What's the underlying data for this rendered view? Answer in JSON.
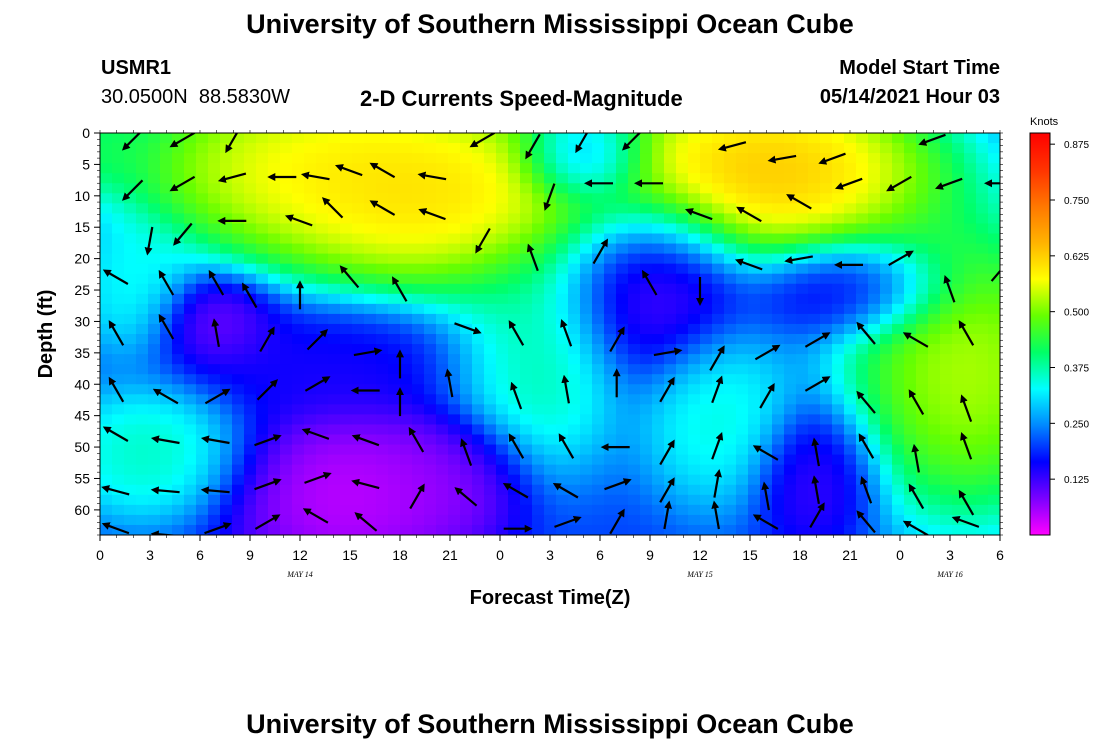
{
  "header": {
    "title": "University of Southern Mississippi Ocean Cube",
    "station_id": "USMR1",
    "station_coords": "30.0500N  88.5830W",
    "plot_title": "2-D Currents Speed-Magnitude",
    "model_start_label": "Model Start Time",
    "model_start_time": "05/14/2021 Hour 03"
  },
  "footer": {
    "title": "University of Southern Mississippi Ocean Cube"
  },
  "chart_data": {
    "type": "heatmap",
    "title": "2-D Currents Speed-Magnitude",
    "xlabel": "Forecast Time(Z)",
    "ylabel": "Depth (ft)",
    "x_tick_labels": [
      "0",
      "3",
      "6",
      "9",
      "12",
      "15",
      "18",
      "21",
      "0",
      "3",
      "6",
      "9",
      "12",
      "15",
      "18",
      "21",
      "0",
      "3",
      "6"
    ],
    "x_hours_from_may14_00z": [
      0,
      3,
      6,
      9,
      12,
      15,
      18,
      21,
      24,
      27,
      30,
      33,
      36,
      39,
      42,
      45,
      48,
      51,
      54
    ],
    "date_labels": [
      {
        "label": "MAY 14",
        "hour": 12
      },
      {
        "label": "MAY 15",
        "hour": 36
      },
      {
        "label": "MAY 16",
        "hour": 51
      }
    ],
    "xlim": [
      0,
      54
    ],
    "y_ticks": [
      0,
      5,
      10,
      15,
      20,
      25,
      30,
      35,
      40,
      45,
      50,
      55,
      60
    ],
    "ylim": [
      0,
      64
    ],
    "y_inverted": true,
    "colorbar": {
      "unit": "Knots",
      "tick_labels": [
        "0.875",
        "0.750",
        "0.625",
        "0.500",
        "0.375",
        "0.250",
        "0.125"
      ],
      "tick_values": [
        0.875,
        0.75,
        0.625,
        0.5,
        0.375,
        0.25,
        0.125
      ],
      "range": [
        0.0,
        0.9
      ],
      "colors": [
        "#ff00ff",
        "#7b00ff",
        "#0000ff",
        "#0088ff",
        "#00ffff",
        "#00ff66",
        "#66ff00",
        "#ffff00",
        "#ffb300",
        "#ff7700",
        "#ff3300",
        "#ff0000"
      ]
    },
    "speed_centers": [
      {
        "hour": 20,
        "depth": 10,
        "speed": 0.7,
        "sx": 6,
        "sy": 9
      },
      {
        "hour": 12,
        "depth": 5,
        "speed": 0.65,
        "sx": 6,
        "sy": 8
      },
      {
        "hour": 40,
        "depth": 6,
        "speed": 0.75,
        "sx": 6,
        "sy": 8
      },
      {
        "hour": 52,
        "depth": 38,
        "speed": 0.62,
        "sx": 4,
        "sy": 13
      },
      {
        "hour": 26,
        "depth": 36,
        "speed": 0.42,
        "sx": 3,
        "sy": 10
      },
      {
        "hour": 37,
        "depth": 45,
        "speed": 0.38,
        "sx": 2.5,
        "sy": 8
      },
      {
        "hour": 3,
        "depth": 51,
        "speed": 0.4,
        "sx": 3,
        "sy": 6
      },
      {
        "hour": 2,
        "depth": 25,
        "speed": 0.36,
        "sx": 2,
        "sy": 6
      },
      {
        "hour": 0,
        "depth": 2,
        "speed": 0.45,
        "sx": 2,
        "sy": 4
      },
      {
        "hour": 15,
        "depth": 58,
        "speed": 0.0,
        "sx": 4,
        "sy": 8
      },
      {
        "hour": 14,
        "depth": 36,
        "speed": 0.14,
        "sx": 5,
        "sy": 5
      },
      {
        "hour": 7,
        "depth": 30,
        "speed": 0.06,
        "sx": 2,
        "sy": 4
      },
      {
        "hour": 21,
        "depth": 55,
        "speed": 0.05,
        "sx": 2.5,
        "sy": 6
      },
      {
        "hour": 33,
        "depth": 25,
        "speed": 0.08,
        "sx": 3,
        "sy": 8
      },
      {
        "hour": 29,
        "depth": 4,
        "speed": 0.18,
        "sx": 2,
        "sy": 4
      },
      {
        "hour": 45,
        "depth": 25,
        "speed": 0.12,
        "sx": 3,
        "sy": 4
      },
      {
        "hour": 43,
        "depth": 55,
        "speed": 0.1,
        "sx": 2,
        "sy": 6
      }
    ],
    "vectors": [
      {
        "hour": 2,
        "depth": 1,
        "angle": 225
      },
      {
        "hour": 5,
        "depth": 1,
        "angle": 210
      },
      {
        "hour": 8,
        "depth": 1,
        "angle": 240
      },
      {
        "hour": 2,
        "depth": 9,
        "angle": 225
      },
      {
        "hour": 5,
        "depth": 8,
        "angle": 210
      },
      {
        "hour": 8,
        "depth": 7,
        "angle": 195
      },
      {
        "hour": 11,
        "depth": 7,
        "angle": 180
      },
      {
        "hour": 13,
        "depth": 7,
        "angle": 170
      },
      {
        "hour": 15,
        "depth": 6,
        "angle": 160
      },
      {
        "hour": 17,
        "depth": 6,
        "angle": 150
      },
      {
        "hour": 20,
        "depth": 7,
        "angle": 170
      },
      {
        "hour": 23,
        "depth": 1,
        "angle": 210
      },
      {
        "hour": 26,
        "depth": 2,
        "angle": 240
      },
      {
        "hour": 29,
        "depth": 1,
        "angle": 240
      },
      {
        "hour": 32,
        "depth": 1,
        "angle": 225
      },
      {
        "hour": 38,
        "depth": 2,
        "angle": 195
      },
      {
        "hour": 41,
        "depth": 4,
        "angle": 190
      },
      {
        "hour": 44,
        "depth": 4,
        "angle": 200
      },
      {
        "hour": 50,
        "depth": 1,
        "angle": 200
      },
      {
        "hour": 3,
        "depth": 17,
        "angle": 260
      },
      {
        "hour": 5,
        "depth": 16,
        "angle": 230
      },
      {
        "hour": 8,
        "depth": 14,
        "angle": 180
      },
      {
        "hour": 12,
        "depth": 14,
        "angle": 160
      },
      {
        "hour": 14,
        "depth": 12,
        "angle": 135
      },
      {
        "hour": 17,
        "depth": 12,
        "angle": 150
      },
      {
        "hour": 20,
        "depth": 13,
        "angle": 160
      },
      {
        "hour": 23,
        "depth": 17,
        "angle": 240
      },
      {
        "hour": 27,
        "depth": 10,
        "angle": 250
      },
      {
        "hour": 30,
        "depth": 8,
        "angle": 180
      },
      {
        "hour": 33,
        "depth": 8,
        "angle": 180
      },
      {
        "hour": 36,
        "depth": 13,
        "angle": 160
      },
      {
        "hour": 39,
        "depth": 13,
        "angle": 150
      },
      {
        "hour": 42,
        "depth": 11,
        "angle": 150
      },
      {
        "hour": 45,
        "depth": 8,
        "angle": 200
      },
      {
        "hour": 48,
        "depth": 8,
        "angle": 210
      },
      {
        "hour": 51,
        "depth": 8,
        "angle": 200
      },
      {
        "hour": 54,
        "depth": 8,
        "angle": 180
      },
      {
        "hour": 1,
        "depth": 23,
        "angle": 150
      },
      {
        "hour": 4,
        "depth": 24,
        "angle": 120
      },
      {
        "hour": 7,
        "depth": 24,
        "angle": 120
      },
      {
        "hour": 9,
        "depth": 26,
        "angle": 120
      },
      {
        "hour": 12,
        "depth": 26,
        "angle": 90
      },
      {
        "hour": 15,
        "depth": 23,
        "angle": 130
      },
      {
        "hour": 18,
        "depth": 25,
        "angle": 120
      },
      {
        "hour": 26,
        "depth": 20,
        "angle": 110
      },
      {
        "hour": 30,
        "depth": 19,
        "angle": 60
      },
      {
        "hour": 33,
        "depth": 24,
        "angle": 120
      },
      {
        "hour": 36,
        "depth": 25,
        "angle": 270
      },
      {
        "hour": 39,
        "depth": 21,
        "angle": 160
      },
      {
        "hour": 42,
        "depth": 20,
        "angle": 190
      },
      {
        "hour": 45,
        "depth": 21,
        "angle": 180
      },
      {
        "hour": 48,
        "depth": 20,
        "angle": 30
      },
      {
        "hour": 51,
        "depth": 25,
        "angle": 110
      },
      {
        "hour": 54,
        "depth": 22,
        "angle": 50
      },
      {
        "hour": 1,
        "depth": 32,
        "angle": 120
      },
      {
        "hour": 4,
        "depth": 31,
        "angle": 120
      },
      {
        "hour": 7,
        "depth": 32,
        "angle": 100
      },
      {
        "hour": 10,
        "depth": 33,
        "angle": 60
      },
      {
        "hour": 13,
        "depth": 33,
        "angle": 45
      },
      {
        "hour": 16,
        "depth": 35,
        "angle": 10
      },
      {
        "hour": 18,
        "depth": 37,
        "angle": 90
      },
      {
        "hour": 22,
        "depth": 31,
        "angle": 340
      },
      {
        "hour": 25,
        "depth": 32,
        "angle": 120
      },
      {
        "hour": 28,
        "depth": 32,
        "angle": 110
      },
      {
        "hour": 31,
        "depth": 33,
        "angle": 60
      },
      {
        "hour": 34,
        "depth": 35,
        "angle": 10
      },
      {
        "hour": 37,
        "depth": 36,
        "angle": 60
      },
      {
        "hour": 40,
        "depth": 35,
        "angle": 30
      },
      {
        "hour": 43,
        "depth": 33,
        "angle": 30
      },
      {
        "hour": 46,
        "depth": 32,
        "angle": 130
      },
      {
        "hour": 49,
        "depth": 33,
        "angle": 150
      },
      {
        "hour": 52,
        "depth": 32,
        "angle": 120
      },
      {
        "hour": 1,
        "depth": 41,
        "angle": 120
      },
      {
        "hour": 4,
        "depth": 42,
        "angle": 150
      },
      {
        "hour": 7,
        "depth": 42,
        "angle": 30
      },
      {
        "hour": 10,
        "depth": 41,
        "angle": 45
      },
      {
        "hour": 13,
        "depth": 40,
        "angle": 30
      },
      {
        "hour": 16,
        "depth": 41,
        "angle": 180
      },
      {
        "hour": 18,
        "depth": 43,
        "angle": 90
      },
      {
        "hour": 21,
        "depth": 40,
        "angle": 100
      },
      {
        "hour": 25,
        "depth": 42,
        "angle": 110
      },
      {
        "hour": 28,
        "depth": 41,
        "angle": 100
      },
      {
        "hour": 31,
        "depth": 40,
        "angle": 90
      },
      {
        "hour": 34,
        "depth": 41,
        "angle": 60
      },
      {
        "hour": 37,
        "depth": 41,
        "angle": 70
      },
      {
        "hour": 40,
        "depth": 42,
        "angle": 60
      },
      {
        "hour": 43,
        "depth": 40,
        "angle": 30
      },
      {
        "hour": 46,
        "depth": 43,
        "angle": 130
      },
      {
        "hour": 49,
        "depth": 43,
        "angle": 120
      },
      {
        "hour": 52,
        "depth": 44,
        "angle": 110
      },
      {
        "hour": 1,
        "depth": 48,
        "angle": 150
      },
      {
        "hour": 4,
        "depth": 49,
        "angle": 170
      },
      {
        "hour": 7,
        "depth": 49,
        "angle": 170
      },
      {
        "hour": 10,
        "depth": 49,
        "angle": 20
      },
      {
        "hour": 13,
        "depth": 48,
        "angle": 160
      },
      {
        "hour": 16,
        "depth": 49,
        "angle": 160
      },
      {
        "hour": 19,
        "depth": 49,
        "angle": 120
      },
      {
        "hour": 22,
        "depth": 51,
        "angle": 110
      },
      {
        "hour": 25,
        "depth": 50,
        "angle": 120
      },
      {
        "hour": 28,
        "depth": 50,
        "angle": 120
      },
      {
        "hour": 31,
        "depth": 50,
        "angle": 180
      },
      {
        "hour": 34,
        "depth": 51,
        "angle": 60
      },
      {
        "hour": 37,
        "depth": 50,
        "angle": 70
      },
      {
        "hour": 40,
        "depth": 51,
        "angle": 150
      },
      {
        "hour": 43,
        "depth": 51,
        "angle": 100
      },
      {
        "hour": 46,
        "depth": 50,
        "angle": 120
      },
      {
        "hour": 49,
        "depth": 52,
        "angle": 100
      },
      {
        "hour": 52,
        "depth": 50,
        "angle": 110
      },
      {
        "hour": 1,
        "depth": 57,
        "angle": 165
      },
      {
        "hour": 4,
        "depth": 57,
        "angle": 175
      },
      {
        "hour": 7,
        "depth": 57,
        "angle": 175
      },
      {
        "hour": 10,
        "depth": 56,
        "angle": 20
      },
      {
        "hour": 13,
        "depth": 55,
        "angle": 20
      },
      {
        "hour": 16,
        "depth": 56,
        "angle": 165
      },
      {
        "hour": 19,
        "depth": 58,
        "angle": 60
      },
      {
        "hour": 22,
        "depth": 58,
        "angle": 140
      },
      {
        "hour": 25,
        "depth": 57,
        "angle": 150
      },
      {
        "hour": 28,
        "depth": 57,
        "angle": 150
      },
      {
        "hour": 31,
        "depth": 56,
        "angle": 20
      },
      {
        "hour": 34,
        "depth": 57,
        "angle": 60
      },
      {
        "hour": 37,
        "depth": 56,
        "angle": 80
      },
      {
        "hour": 40,
        "depth": 58,
        "angle": 100
      },
      {
        "hour": 43,
        "depth": 57,
        "angle": 100
      },
      {
        "hour": 46,
        "depth": 57,
        "angle": 110
      },
      {
        "hour": 49,
        "depth": 58,
        "angle": 120
      },
      {
        "hour": 52,
        "depth": 59,
        "angle": 120
      },
      {
        "hour": 1,
        "depth": 63,
        "angle": 160
      },
      {
        "hour": 4,
        "depth": 64,
        "angle": 175
      },
      {
        "hour": 7,
        "depth": 63,
        "angle": 20
      },
      {
        "hour": 10,
        "depth": 62,
        "angle": 30
      },
      {
        "hour": 13,
        "depth": 61,
        "angle": 150
      },
      {
        "hour": 16,
        "depth": 62,
        "angle": 140
      },
      {
        "hour": 25,
        "depth": 63,
        "angle": 0
      },
      {
        "hour": 28,
        "depth": 62,
        "angle": 20
      },
      {
        "hour": 31,
        "depth": 62,
        "angle": 60
      },
      {
        "hour": 34,
        "depth": 61,
        "angle": 80
      },
      {
        "hour": 37,
        "depth": 61,
        "angle": 100
      },
      {
        "hour": 40,
        "depth": 62,
        "angle": 150
      },
      {
        "hour": 43,
        "depth": 61,
        "angle": 60
      },
      {
        "hour": 46,
        "depth": 62,
        "angle": 130
      },
      {
        "hour": 49,
        "depth": 63,
        "angle": 150
      },
      {
        "hour": 52,
        "depth": 62,
        "angle": 160
      }
    ]
  }
}
